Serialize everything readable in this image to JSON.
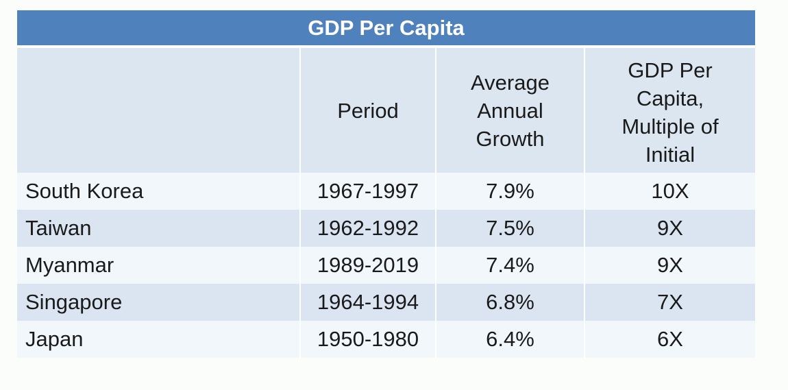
{
  "table": {
    "title": "GDP Per Capita",
    "headers": {
      "country": "",
      "period": "Period",
      "growth_lines": [
        "Average",
        "Annual",
        "Growth"
      ],
      "multiple_lines": [
        "GDP Per",
        "Capita,",
        "Multiple of",
        "Initial"
      ]
    },
    "rows": [
      {
        "country": "South Korea",
        "period": "1967-1997",
        "growth": "7.9%",
        "multiple": "10X"
      },
      {
        "country": "Taiwan",
        "period": "1962-1992",
        "growth": "7.5%",
        "multiple": "9X"
      },
      {
        "country": "Myanmar",
        "period": "1989-2019",
        "growth": "7.4%",
        "multiple": "9X"
      },
      {
        "country": "Singapore",
        "period": "1964-1994",
        "growth": "6.8%",
        "multiple": "7X"
      },
      {
        "country": "Japan",
        "period": "1950-1980",
        "growth": "6.4%",
        "multiple": "6X"
      }
    ]
  },
  "colors": {
    "title_bg": "#4f81bd",
    "header_bg": "#dce6f1",
    "row_light": "#f2f7fc",
    "row_dark": "#dbe5f1"
  }
}
